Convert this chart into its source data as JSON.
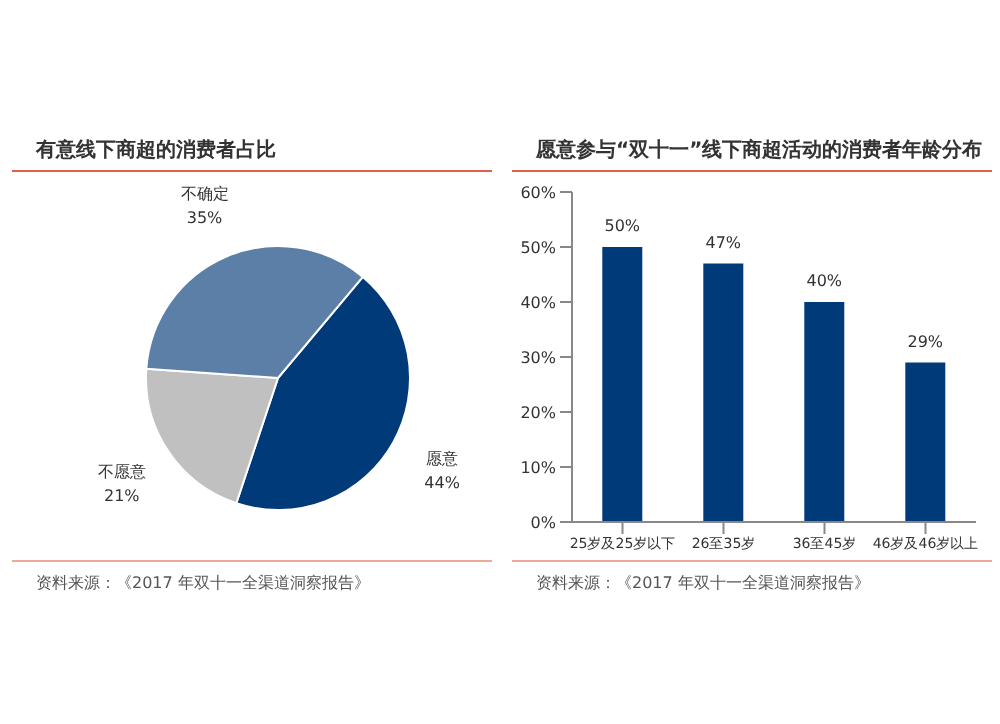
{
  "chart_data": [
    {
      "type": "pie",
      "title": "有意线下商超的消费者占比",
      "categories": [
        "愿意",
        "不愿意",
        "不确定"
      ],
      "values": [
        44,
        21,
        35
      ],
      "colors": [
        "#003a78",
        "#c0c0c0",
        "#5b7fa6"
      ],
      "value_labels": [
        "44%",
        "21%",
        "35%"
      ],
      "legend": false,
      "annotations": [
        "资料来源：《2017 年双十一全渠道洞察报告》"
      ]
    },
    {
      "type": "bar",
      "title": "愿意参与“双十一”线下商超活动的消费者年龄分布",
      "categories": [
        "25岁及25岁以下",
        "26至35岁",
        "36至45岁",
        "46岁及46岁以上"
      ],
      "values": [
        50,
        47,
        40,
        29
      ],
      "color": "#003a78",
      "value_labels": [
        "50%",
        "47%",
        "40%",
        "29%"
      ],
      "ylim": [
        0,
        60
      ],
      "yticks": [
        {
          "value": 0,
          "label": "0%"
        },
        {
          "value": 10,
          "label": "10%"
        },
        {
          "value": 20,
          "label": "20%"
        },
        {
          "value": 30,
          "label": "30%"
        },
        {
          "value": 40,
          "label": "40%"
        },
        {
          "value": 50,
          "label": "50%"
        },
        {
          "value": 60,
          "label": "60%"
        }
      ],
      "grid": false,
      "legend": false,
      "annotations": [
        "资料来源：《2017 年双十一全渠道洞察报告》"
      ]
    }
  ]
}
